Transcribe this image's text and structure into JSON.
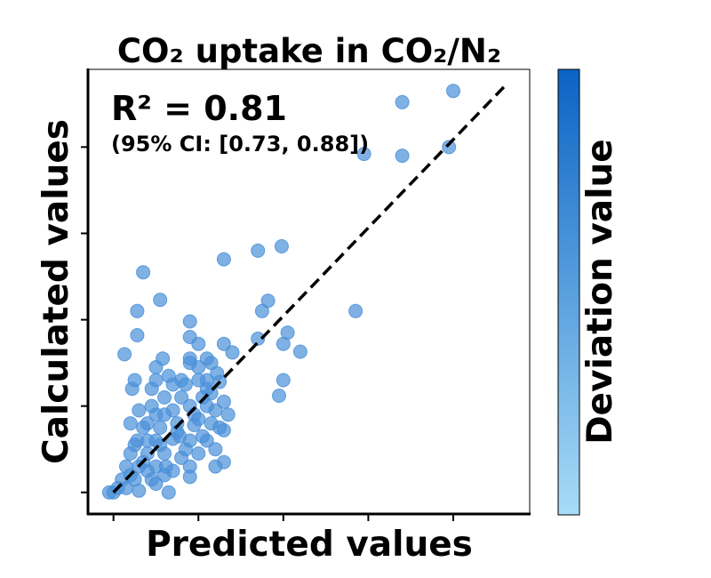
{
  "chart_data": {
    "type": "scatter",
    "title": "CO₂ uptake in CO₂/N₂",
    "xlabel": "Predicted values",
    "ylabel": "Calculated values",
    "colorbar_label": "Deviation value",
    "annotation": {
      "r2": "R² = 0.81",
      "ci": "(95% CI: [0.73, 0.88])"
    },
    "xlim": [
      -0.3,
      4.9
    ],
    "ylim": [
      -0.25,
      4.9
    ],
    "x_ticks": [
      0,
      1,
      2,
      3,
      4
    ],
    "y_ticks": [
      0,
      1,
      2,
      3,
      4
    ],
    "grid": false,
    "reference_line": {
      "style": "dashed",
      "color": "#000000",
      "from": [
        0,
        0
      ],
      "to": [
        4.6,
        4.7
      ]
    },
    "colors": {
      "point": "#4a90d9",
      "cbar_low": "#a8dcf7",
      "cbar_high": "#0b63c4"
    },
    "points": [
      [
        4.0,
        4.65
      ],
      [
        3.4,
        4.52
      ],
      [
        3.4,
        3.9
      ],
      [
        3.95,
        4.0
      ],
      [
        2.95,
        3.92
      ],
      [
        1.3,
        2.7
      ],
      [
        1.7,
        2.8
      ],
      [
        1.98,
        2.85
      ],
      [
        0.35,
        2.55
      ],
      [
        0.55,
        2.23
      ],
      [
        0.28,
        2.1
      ],
      [
        0.9,
        1.98
      ],
      [
        1.75,
        2.1
      ],
      [
        2.85,
        2.1
      ],
      [
        1.82,
        2.22
      ],
      [
        0.28,
        1.82
      ],
      [
        0.9,
        1.8
      ],
      [
        1.0,
        1.72
      ],
      [
        1.3,
        1.72
      ],
      [
        1.7,
        1.78
      ],
      [
        2.05,
        1.85
      ],
      [
        2.0,
        1.72
      ],
      [
        2.2,
        1.63
      ],
      [
        0.13,
        1.6
      ],
      [
        1.4,
        1.62
      ],
      [
        0.5,
        1.45
      ],
      [
        0.9,
        1.5
      ],
      [
        1.0,
        1.45
      ],
      [
        0.8,
        1.3
      ],
      [
        0.25,
        1.3
      ],
      [
        0.22,
        1.2
      ],
      [
        0.45,
        1.2
      ],
      [
        1.0,
        1.3
      ],
      [
        2.0,
        1.3
      ],
      [
        1.95,
        1.12
      ],
      [
        1.1,
        1.2
      ],
      [
        0.6,
        1.1
      ],
      [
        0.3,
        0.95
      ],
      [
        0.5,
        0.9
      ],
      [
        0.7,
        0.95
      ],
      [
        0.9,
        1.0
      ],
      [
        1.1,
        1.0
      ],
      [
        1.3,
        1.05
      ],
      [
        0.35,
        0.75
      ],
      [
        0.55,
        0.75
      ],
      [
        0.75,
        0.8
      ],
      [
        0.95,
        0.78
      ],
      [
        1.15,
        0.8
      ],
      [
        1.3,
        0.72
      ],
      [
        0.28,
        0.6
      ],
      [
        0.5,
        0.6
      ],
      [
        0.7,
        0.62
      ],
      [
        0.9,
        0.6
      ],
      [
        1.1,
        0.6
      ],
      [
        1.25,
        0.75
      ],
      [
        0.2,
        0.45
      ],
      [
        0.4,
        0.45
      ],
      [
        0.6,
        0.45
      ],
      [
        0.8,
        0.4
      ],
      [
        1.0,
        0.45
      ],
      [
        1.2,
        0.5
      ],
      [
        0.15,
        0.3
      ],
      [
        0.3,
        0.3
      ],
      [
        0.5,
        0.3
      ],
      [
        0.7,
        0.25
      ],
      [
        0.9,
        0.3
      ],
      [
        0.1,
        0.15
      ],
      [
        0.25,
        0.15
      ],
      [
        0.45,
        0.15
      ],
      [
        0.6,
        0.2
      ],
      [
        0.05,
        0.05
      ],
      [
        0.15,
        0.05
      ],
      [
        0.3,
        0.02
      ],
      [
        0.0,
        0.0
      ],
      [
        -0.05,
        0.0
      ],
      [
        0.5,
        0.1
      ],
      [
        0.65,
        0.0
      ],
      [
        0.9,
        0.18
      ],
      [
        0.4,
        0.6
      ],
      [
        0.6,
        0.9
      ],
      [
        0.8,
        1.1
      ],
      [
        1.0,
        0.85
      ],
      [
        1.1,
        1.3
      ],
      [
        0.7,
        1.25
      ],
      [
        0.85,
        0.5
      ],
      [
        1.05,
        0.65
      ],
      [
        1.2,
        0.95
      ],
      [
        0.35,
        0.35
      ],
      [
        0.55,
        0.55
      ],
      [
        0.75,
        0.7
      ],
      [
        0.95,
        0.9
      ],
      [
        1.15,
        1.15
      ],
      [
        1.25,
        1.28
      ],
      [
        0.45,
        1.0
      ],
      [
        0.65,
        1.35
      ],
      [
        1.05,
        1.1
      ],
      [
        0.2,
        0.2
      ],
      [
        0.4,
        0.25
      ],
      [
        0.2,
        0.8
      ],
      [
        0.9,
        1.55
      ],
      [
        1.15,
        1.5
      ],
      [
        0.62,
        0.3
      ],
      [
        1.3,
        0.35
      ],
      [
        1.35,
        0.9
      ],
      [
        0.25,
        0.55
      ],
      [
        1.2,
        0.3
      ],
      [
        0.58,
        1.55
      ],
      [
        1.22,
        1.38
      ],
      [
        1.1,
        1.55
      ],
      [
        0.85,
        1.25
      ],
      [
        0.5,
        1.3
      ],
      [
        0.4,
        0.8
      ],
      [
        0.78,
        0.65
      ]
    ]
  }
}
